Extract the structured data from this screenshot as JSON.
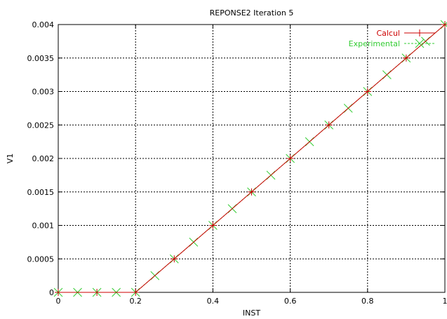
{
  "chart_data": {
    "type": "line",
    "title": "REPONSE2  Iteration 5",
    "xlabel": "INST",
    "ylabel": "V1",
    "xlim": [
      0,
      1
    ],
    "ylim": [
      0,
      0.004
    ],
    "x_ticks": [
      "0",
      "0.2",
      "0.4",
      "0.6",
      "0.8",
      "1"
    ],
    "x_tick_values": [
      0,
      0.2,
      0.4,
      0.6,
      0.8,
      1
    ],
    "y_ticks": [
      "0",
      "0.0005",
      "0.001",
      "0.0015",
      "0.002",
      "0.0025",
      "0.003",
      "0.0035",
      "0.004"
    ],
    "y_tick_values": [
      0,
      0.0005,
      0.001,
      0.0015,
      0.002,
      0.0025,
      0.003,
      0.0035,
      0.004
    ],
    "grid": true,
    "legend_position": "top-right",
    "series": [
      {
        "name": "Calcul",
        "color": "#cc0000",
        "line_color": "#cc0000",
        "marker": "plus",
        "line_style": "solid",
        "x": [
          0,
          0.1,
          0.2,
          0.3,
          0.4,
          0.5,
          0.6,
          0.7,
          0.8,
          0.9,
          1.0
        ],
        "y": [
          0,
          0,
          0,
          0.0005,
          0.001,
          0.0015,
          0.002,
          0.0025,
          0.003,
          0.0035,
          0.004
        ]
      },
      {
        "name": "Experimental",
        "color": "#33cc33",
        "line_color": "#33cc33",
        "marker": "x",
        "line_style": "dashed",
        "x": [
          0,
          0.05,
          0.1,
          0.15,
          0.2,
          0.25,
          0.3,
          0.35,
          0.4,
          0.45,
          0.5,
          0.55,
          0.6,
          0.65,
          0.7,
          0.75,
          0.8,
          0.85,
          0.9,
          0.95,
          1.0
        ],
        "y": [
          0,
          0,
          0,
          0,
          0,
          0.00025,
          0.0005,
          0.00075,
          0.001,
          0.00125,
          0.0015,
          0.00175,
          0.002,
          0.00225,
          0.0025,
          0.00275,
          0.003,
          0.00325,
          0.0035,
          0.00375,
          0.004
        ]
      }
    ]
  }
}
